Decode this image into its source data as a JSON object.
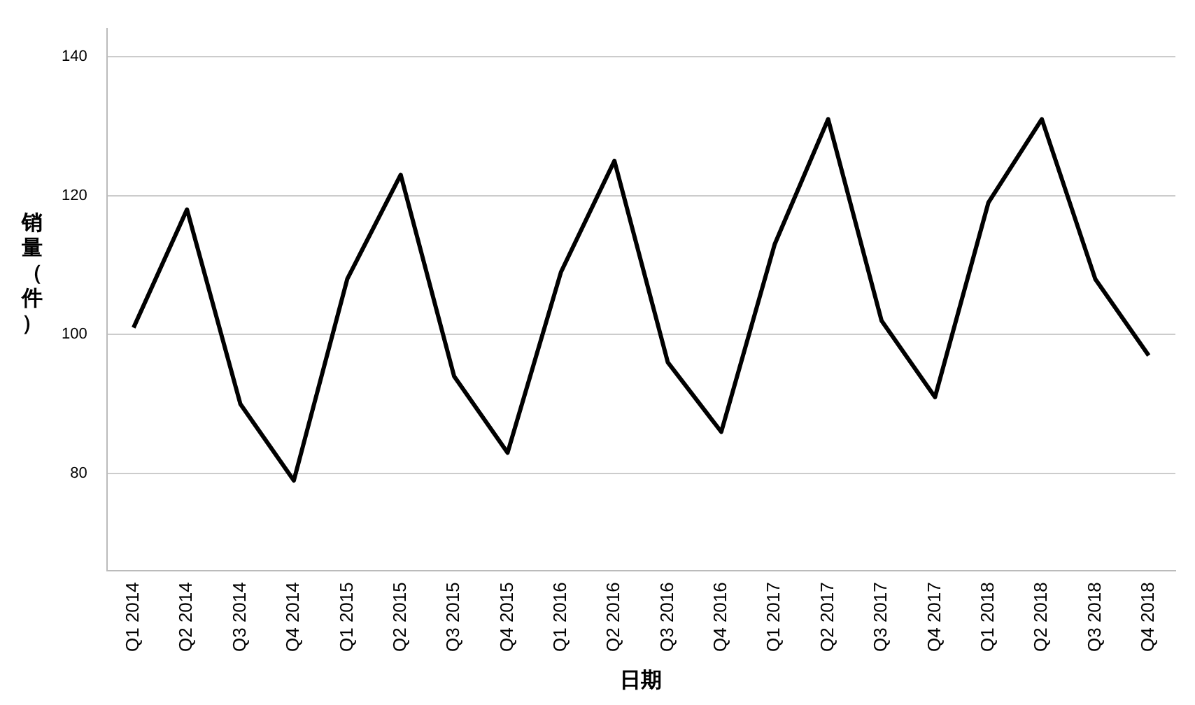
{
  "chart_data": {
    "type": "line",
    "xlabel": "日期",
    "ylabel": "销量（件）",
    "categories": [
      "Q1 2014",
      "Q2 2014",
      "Q3 2014",
      "Q4 2014",
      "Q1 2015",
      "Q2 2015",
      "Q3 2015",
      "Q4 2015",
      "Q1 2016",
      "Q2 2016",
      "Q3 2016",
      "Q4 2016",
      "Q1 2017",
      "Q2 2017",
      "Q3 2017",
      "Q4 2017",
      "Q1 2018",
      "Q2 2018",
      "Q3 2018",
      "Q4 2018"
    ],
    "series": [
      {
        "color": "#000000",
        "values": [
          101,
          118,
          90,
          79,
          108,
          123,
          94,
          83,
          109,
          125,
          96,
          86,
          113,
          131,
          102,
          91,
          119,
          131,
          108,
          97
        ]
      }
    ],
    "ylim": [
      66,
      144
    ],
    "yticks": [
      80,
      100,
      120,
      140
    ],
    "grid": "y",
    "legend": false,
    "marker": "none",
    "line_style": "solid"
  }
}
